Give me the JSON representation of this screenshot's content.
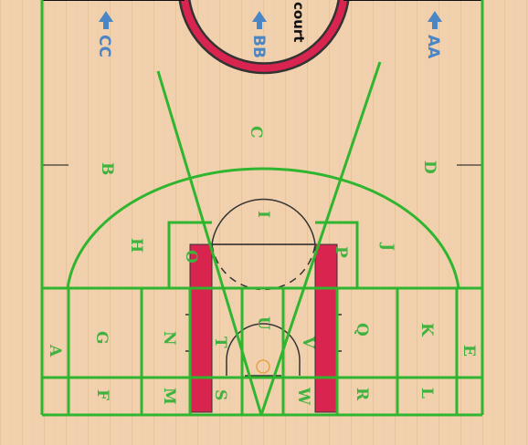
{
  "court_text": "court",
  "arrows": [
    {
      "id": "cc",
      "label": "CC",
      "icon": "up-arrow-icon"
    },
    {
      "id": "bb",
      "label": "BB",
      "icon": "up-arrow-icon"
    },
    {
      "id": "aa",
      "label": "AA",
      "icon": "up-arrow-icon"
    }
  ],
  "zones": [
    "A",
    "B",
    "C",
    "D",
    "E",
    "F",
    "G",
    "H",
    "I",
    "J",
    "K",
    "L",
    "M",
    "N",
    "O",
    "P",
    "Q",
    "R",
    "S",
    "T",
    "U",
    "V",
    "W"
  ],
  "colors": {
    "floor": "#f1d1ad",
    "lines": "#2fb52f",
    "paint": "#d9244f",
    "arrow": "#4a86c5"
  }
}
